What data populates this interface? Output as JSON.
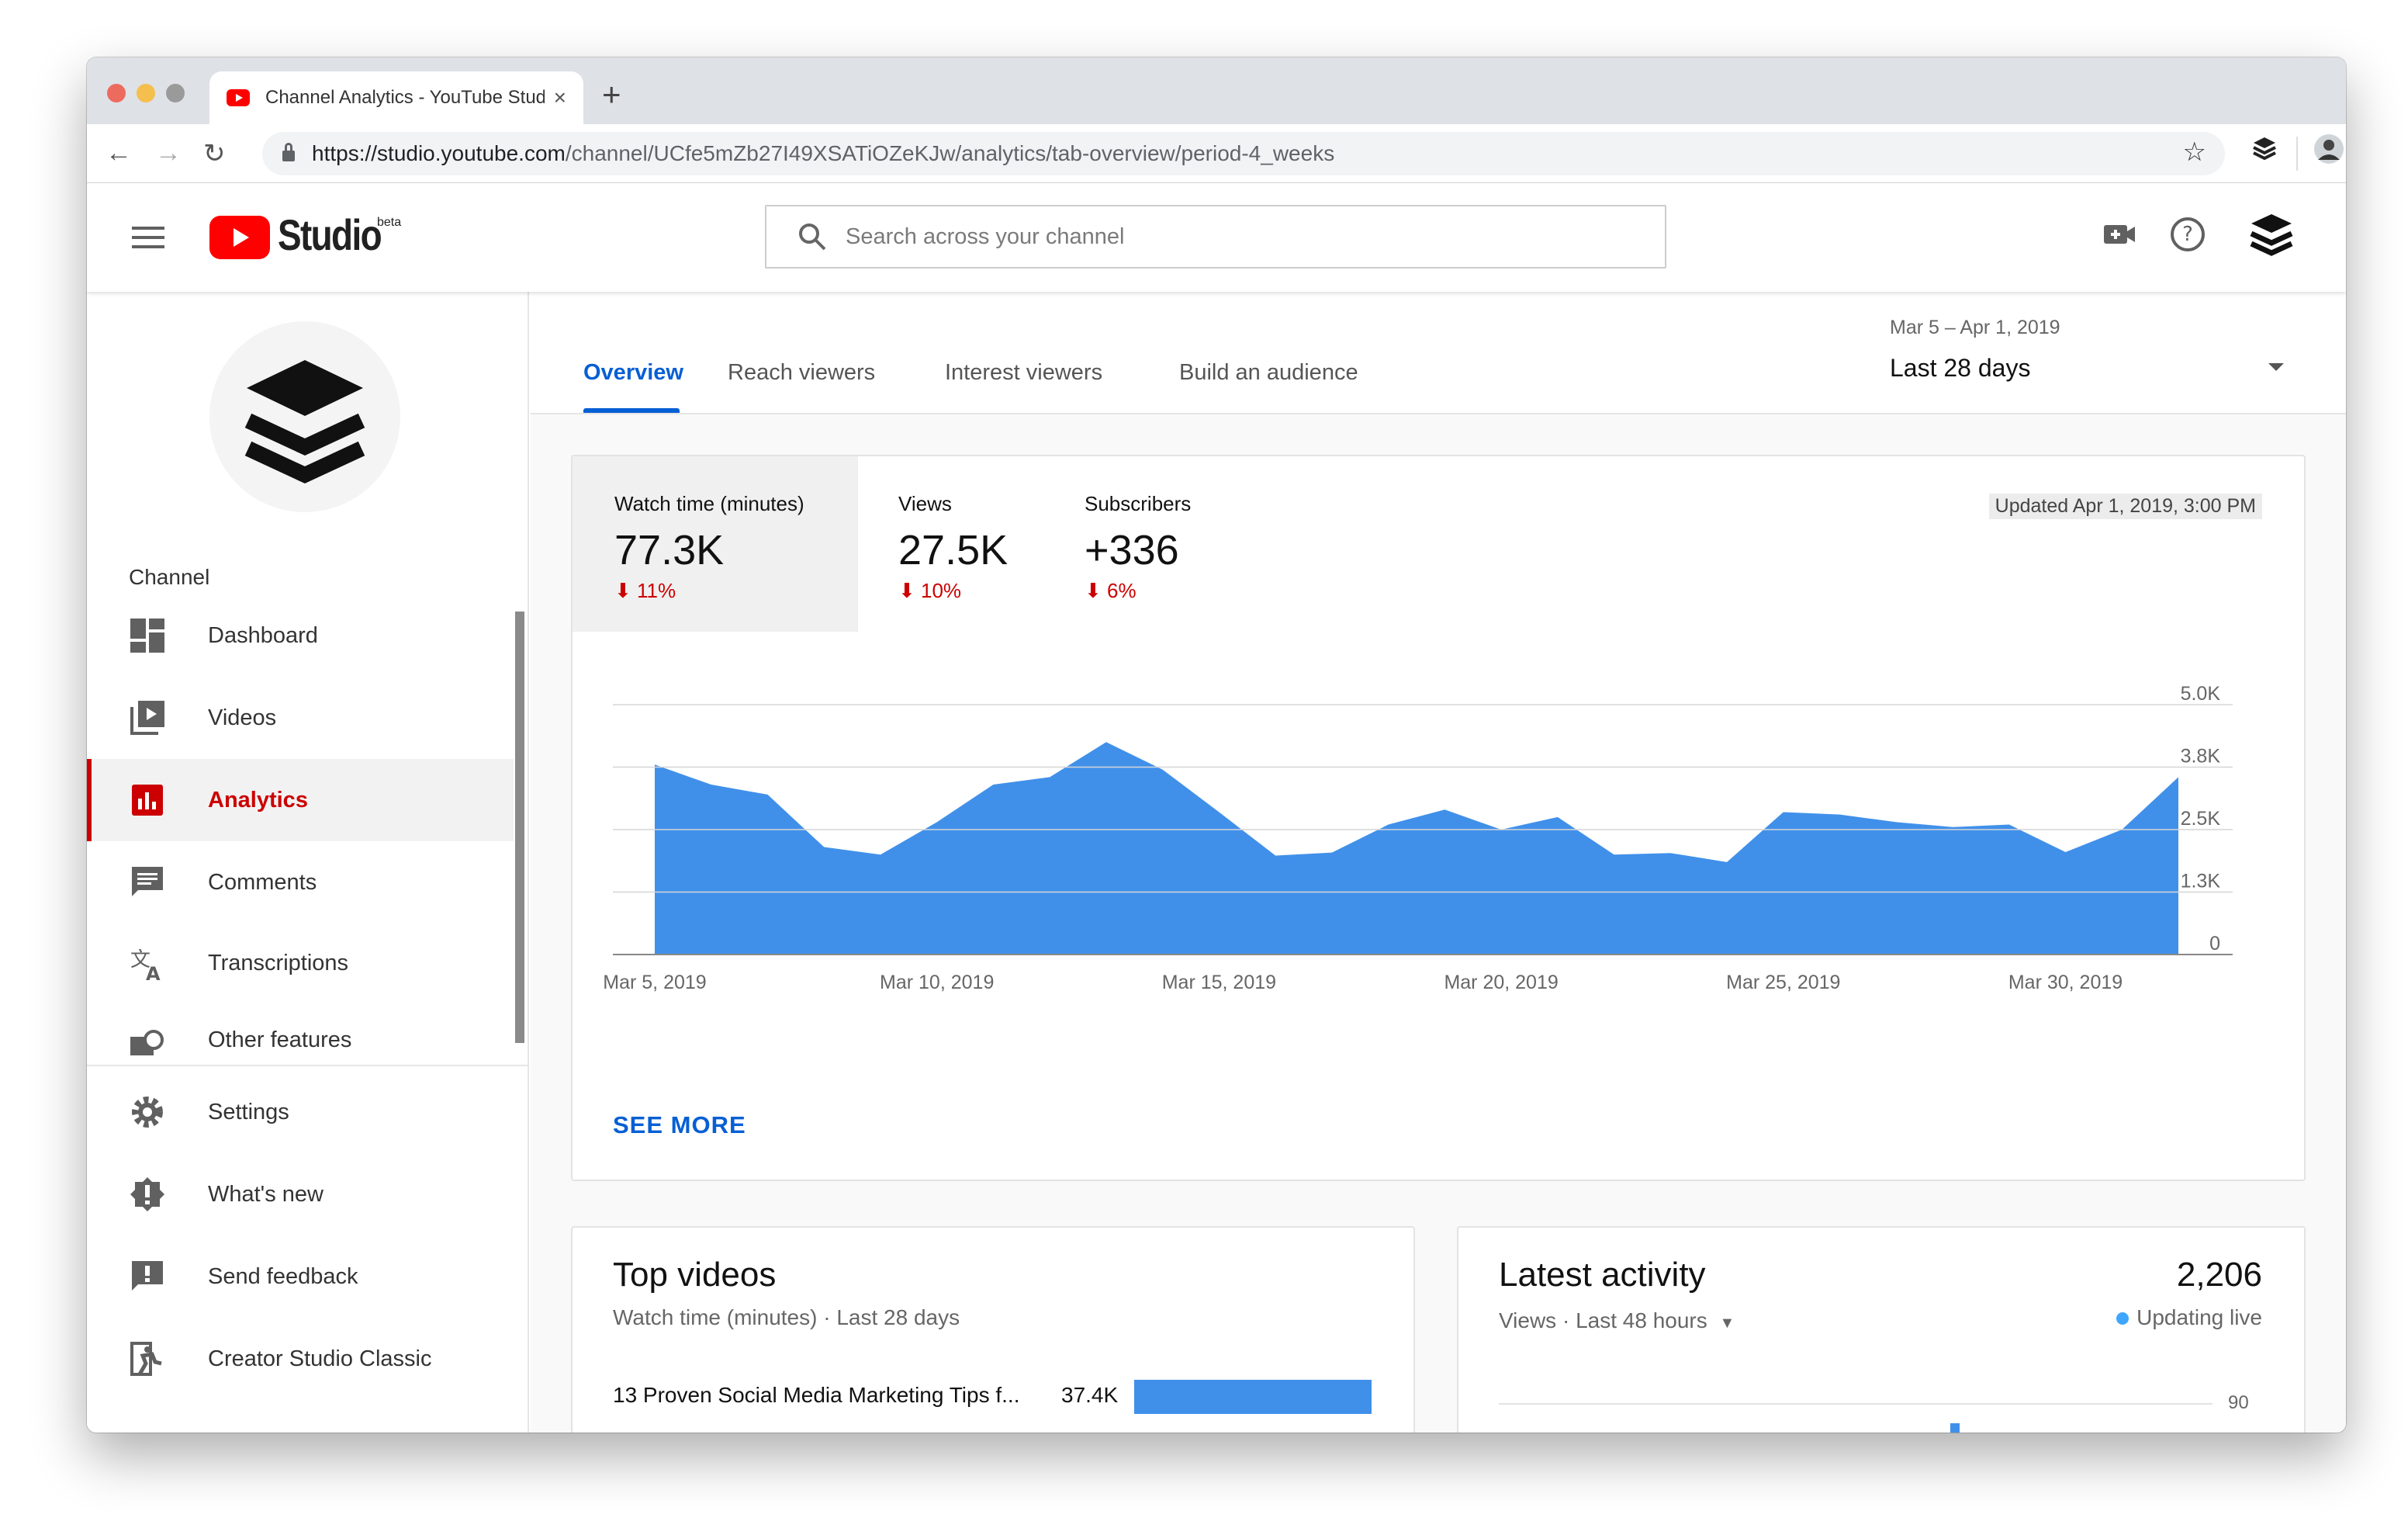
{
  "browser": {
    "tab_title": "Channel Analytics - YouTube Studio",
    "url_host": "https://studio.youtube.com",
    "url_path": "/channel/UCfe5mZb27I49XSATiOZeKJw/analytics/tab-overview/period-4_weeks",
    "new_tab": "+"
  },
  "header": {
    "logo_text": "Studio",
    "beta": "beta",
    "search_placeholder": "Search across your channel"
  },
  "sidebar": {
    "section_label": "Channel",
    "items": [
      {
        "label": "Dashboard",
        "icon": "dashboard-icon"
      },
      {
        "label": "Videos",
        "icon": "videos-icon"
      },
      {
        "label": "Analytics",
        "icon": "analytics-icon",
        "active": true
      },
      {
        "label": "Comments",
        "icon": "comments-icon"
      },
      {
        "label": "Transcriptions",
        "icon": "translate-icon"
      },
      {
        "label": "Other features",
        "icon": "other-features-icon"
      }
    ],
    "bottom_items": [
      {
        "label": "Settings",
        "icon": "gear-icon"
      },
      {
        "label": "What's new",
        "icon": "whats-new-icon"
      },
      {
        "label": "Send feedback",
        "icon": "feedback-icon"
      },
      {
        "label": "Creator Studio Classic",
        "icon": "exit-icon"
      }
    ]
  },
  "tabs": [
    {
      "label": "Overview",
      "active": true
    },
    {
      "label": "Reach viewers"
    },
    {
      "label": "Interest viewers"
    },
    {
      "label": "Build an audience"
    }
  ],
  "date_picker": {
    "range": "Mar 5 – Apr 1, 2019",
    "value": "Last 28 days"
  },
  "overview": {
    "metrics": [
      {
        "name": "Watch time (minutes)",
        "value": "77.3K",
        "change": "11%",
        "direction": "down"
      },
      {
        "name": "Views",
        "value": "27.5K",
        "change": "10%",
        "direction": "down"
      },
      {
        "name": "Subscribers",
        "value": "+336",
        "change": "6%",
        "direction": "down"
      }
    ],
    "updated": "Updated Apr 1, 2019, 3:00 PM",
    "see_more": "SEE MORE",
    "accent": "#4090ea",
    "down_color": "#cc0000"
  },
  "chart_data": {
    "type": "area",
    "series": [
      {
        "values": [
          3800,
          3400,
          3200,
          2150,
          2000,
          2650,
          3400,
          3550,
          4250,
          3700,
          2850,
          1980,
          2040,
          2600,
          2900,
          2500,
          2750,
          2000,
          2030,
          1850,
          2850,
          2800,
          2650,
          2550,
          2600,
          2050,
          2500,
          3550
        ]
      }
    ],
    "x_start": "2019-03-05",
    "xtick_labels": [
      "Mar 5, 2019",
      "Mar 10, 2019",
      "Mar 15, 2019",
      "Mar 20, 2019",
      "Mar 25, 2019",
      "Mar 30, 2019"
    ],
    "ytick_labels": [
      "0",
      "1.3K",
      "2.5K",
      "3.8K",
      "5.0K"
    ],
    "ylim": [
      0,
      5000
    ],
    "grid": true,
    "title": "",
    "xlabel": "",
    "ylabel": ""
  },
  "top_videos": {
    "title": "Top videos",
    "subtitle": "Watch time (minutes) · Last 28 days",
    "rows": [
      {
        "title": "13 Proven Social Media Marketing Tips f...",
        "value": "37.4K",
        "fraction": 1.0
      }
    ]
  },
  "latest_activity": {
    "title": "Latest activity",
    "count": "2,206",
    "subtitle": "Views · Last 48 hours",
    "status": "Updating live",
    "axis_top": "90"
  }
}
